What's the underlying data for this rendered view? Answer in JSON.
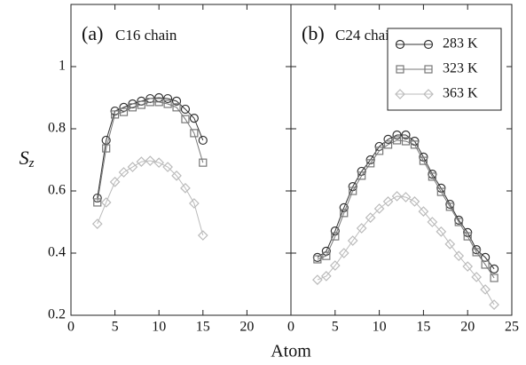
{
  "chart_data": [
    {
      "type": "line",
      "panel_label": "(a)",
      "title": "C16 chain",
      "ylabel": {
        "main": "S",
        "sub": "z"
      },
      "xlabel": "Atom",
      "x": [
        3,
        4,
        5,
        6,
        7,
        8,
        9,
        10,
        11,
        12,
        13,
        14,
        15
      ],
      "series": [
        {
          "color": "#333333",
          "marker": "circle",
          "values": [
            0.577,
            0.763,
            0.857,
            0.869,
            0.88,
            0.889,
            0.897,
            0.9,
            0.897,
            0.889,
            0.863,
            0.834,
            0.763
          ]
        },
        {
          "color": "#777777",
          "marker": "square",
          "values": [
            0.563,
            0.737,
            0.846,
            0.854,
            0.869,
            0.877,
            0.886,
            0.886,
            0.88,
            0.869,
            0.831,
            0.786,
            0.691
          ]
        },
        {
          "color": "#bbbbbb",
          "marker": "diamond",
          "values": [
            0.494,
            0.563,
            0.629,
            0.66,
            0.677,
            0.694,
            0.697,
            0.691,
            0.677,
            0.649,
            0.609,
            0.56,
            0.457
          ]
        }
      ],
      "xlim": [
        0,
        25
      ],
      "xticks": [
        0,
        5,
        10,
        15,
        20
      ],
      "ylim": [
        0.2,
        1.2
      ],
      "yticks": [
        0.2,
        0.4,
        0.6,
        0.8,
        1
      ]
    },
    {
      "type": "line",
      "panel_label": "(b)",
      "title": "C24 chain",
      "legend": "upper right",
      "x": [
        3,
        4,
        5,
        6,
        7,
        8,
        9,
        10,
        11,
        12,
        13,
        14,
        15,
        16,
        17,
        18,
        19,
        20,
        21,
        22,
        23
      ],
      "series": [
        {
          "name": "283 K",
          "color": "#333333",
          "marker": "circle",
          "values": [
            0.386,
            0.406,
            0.471,
            0.546,
            0.614,
            0.663,
            0.7,
            0.743,
            0.766,
            0.78,
            0.78,
            0.76,
            0.709,
            0.654,
            0.609,
            0.557,
            0.506,
            0.466,
            0.411,
            0.386,
            0.349
          ]
        },
        {
          "name": "323 K",
          "color": "#777777",
          "marker": "square",
          "values": [
            0.38,
            0.391,
            0.454,
            0.529,
            0.6,
            0.649,
            0.689,
            0.729,
            0.749,
            0.763,
            0.76,
            0.749,
            0.697,
            0.646,
            0.597,
            0.549,
            0.5,
            0.454,
            0.403,
            0.363,
            0.32
          ]
        },
        {
          "name": "363 K",
          "color": "#bbbbbb",
          "marker": "diamond",
          "values": [
            0.314,
            0.326,
            0.36,
            0.4,
            0.44,
            0.48,
            0.514,
            0.543,
            0.566,
            0.583,
            0.58,
            0.566,
            0.534,
            0.5,
            0.469,
            0.429,
            0.391,
            0.357,
            0.323,
            0.283,
            0.234
          ]
        }
      ],
      "xlim": [
        0,
        25
      ],
      "xticks": [
        0,
        5,
        10,
        15,
        20,
        25
      ],
      "ylim": [
        0.2,
        1.2
      ],
      "yticks": [
        0.2,
        0.4,
        0.6,
        0.8,
        1
      ]
    }
  ]
}
